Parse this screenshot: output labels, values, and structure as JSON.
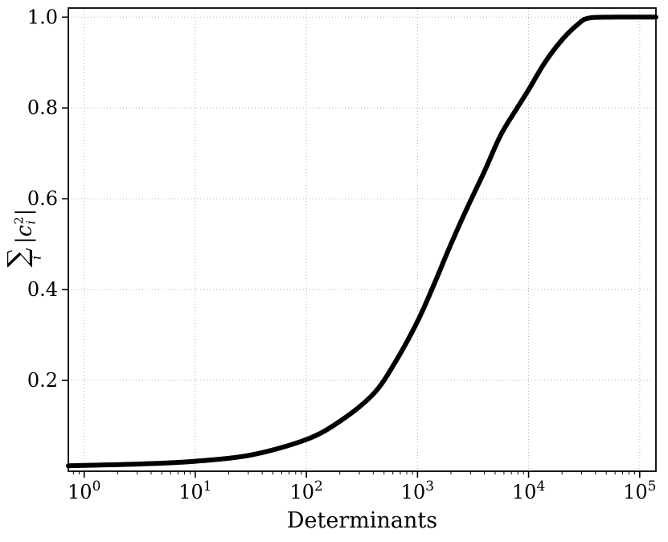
{
  "figure": {
    "background": "#ffffff",
    "line_color": "#000000",
    "grid_color": "#b0b0b0",
    "spine_color": "#000000"
  },
  "chart_data": {
    "type": "line",
    "title": "",
    "xlabel": "Determinants",
    "ylabel": {
      "sigma": "∑",
      "sigma_sub": "i",
      "body_open": "|c",
      "sup": "2",
      "sub": "i",
      "body_close": "|"
    },
    "xscale": "log",
    "xlim": [
      0.72,
      140000
    ],
    "ylim": [
      0,
      1.02
    ],
    "xticks": {
      "base": "10",
      "exponents": [
        0,
        1,
        2,
        3,
        4,
        5
      ]
    },
    "yticks": [
      "0.2",
      "0.4",
      "0.6",
      "0.8",
      "1.0"
    ],
    "grid": "dotted",
    "legend": "none",
    "series": [
      {
        "x": [
          0.72,
          1,
          3.2,
          10,
          32,
          100,
          200,
          400,
          630,
          1000,
          1400,
          2000,
          2800,
          4000,
          5600,
          7900,
          10000,
          14000,
          20000,
          28000,
          35000,
          60000,
          140000
        ],
        "y": [
          0.012,
          0.013,
          0.016,
          0.022,
          0.036,
          0.07,
          0.11,
          0.17,
          0.24,
          0.33,
          0.41,
          0.5,
          0.58,
          0.66,
          0.74,
          0.8,
          0.84,
          0.9,
          0.95,
          0.985,
          0.998,
          1.0,
          1.0
        ]
      }
    ]
  }
}
